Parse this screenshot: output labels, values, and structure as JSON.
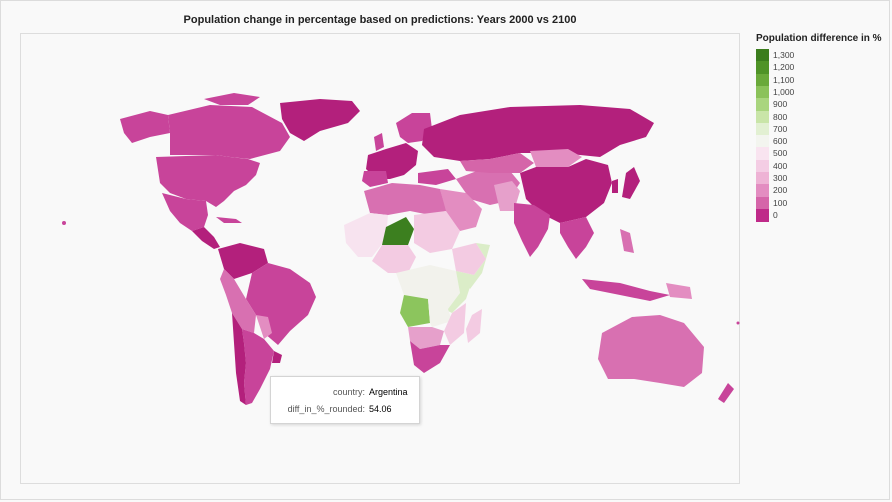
{
  "title": "Population change in percentage based on predictions: Years 2000 vs 2100",
  "legend": {
    "title": "Population difference in %",
    "items": [
      {
        "label": "1,300",
        "color": "#3b7d1d"
      },
      {
        "label": "1,200",
        "color": "#4f9327"
      },
      {
        "label": "1,100",
        "color": "#6aa93a"
      },
      {
        "label": "1,000",
        "color": "#8bc25a"
      },
      {
        "label": "900",
        "color": "#a9d57e"
      },
      {
        "label": "800",
        "color": "#c9e5a8"
      },
      {
        "label": "700",
        "color": "#e2f0d2"
      },
      {
        "label": "600",
        "color": "#f3f5ef"
      },
      {
        "label": "500",
        "color": "#f9e4f0"
      },
      {
        "label": "400",
        "color": "#f4cde4"
      },
      {
        "label": "300",
        "color": "#eeb3d5"
      },
      {
        "label": "200",
        "color": "#e38dc1"
      },
      {
        "label": "100",
        "color": "#d565a9"
      },
      {
        "label": "0",
        "color": "#bf2a89"
      }
    ]
  },
  "tooltip": {
    "rows": [
      {
        "key": "country:",
        "value": "Argentina"
      },
      {
        "key": "diff_in_%_rounded:",
        "value": "54.06"
      }
    ]
  },
  "colors": {
    "decline": "#b3207c",
    "low": "#c8449a",
    "mid": "#d870b1",
    "pink": "#e6a0cb",
    "light_pink": "#f3cbe2",
    "pale": "#f7e3ef",
    "near_white": "#f2f2ec",
    "pale_green": "#dbedc8",
    "green": "#8cc55d",
    "dark_green": "#3c7f1f"
  }
}
